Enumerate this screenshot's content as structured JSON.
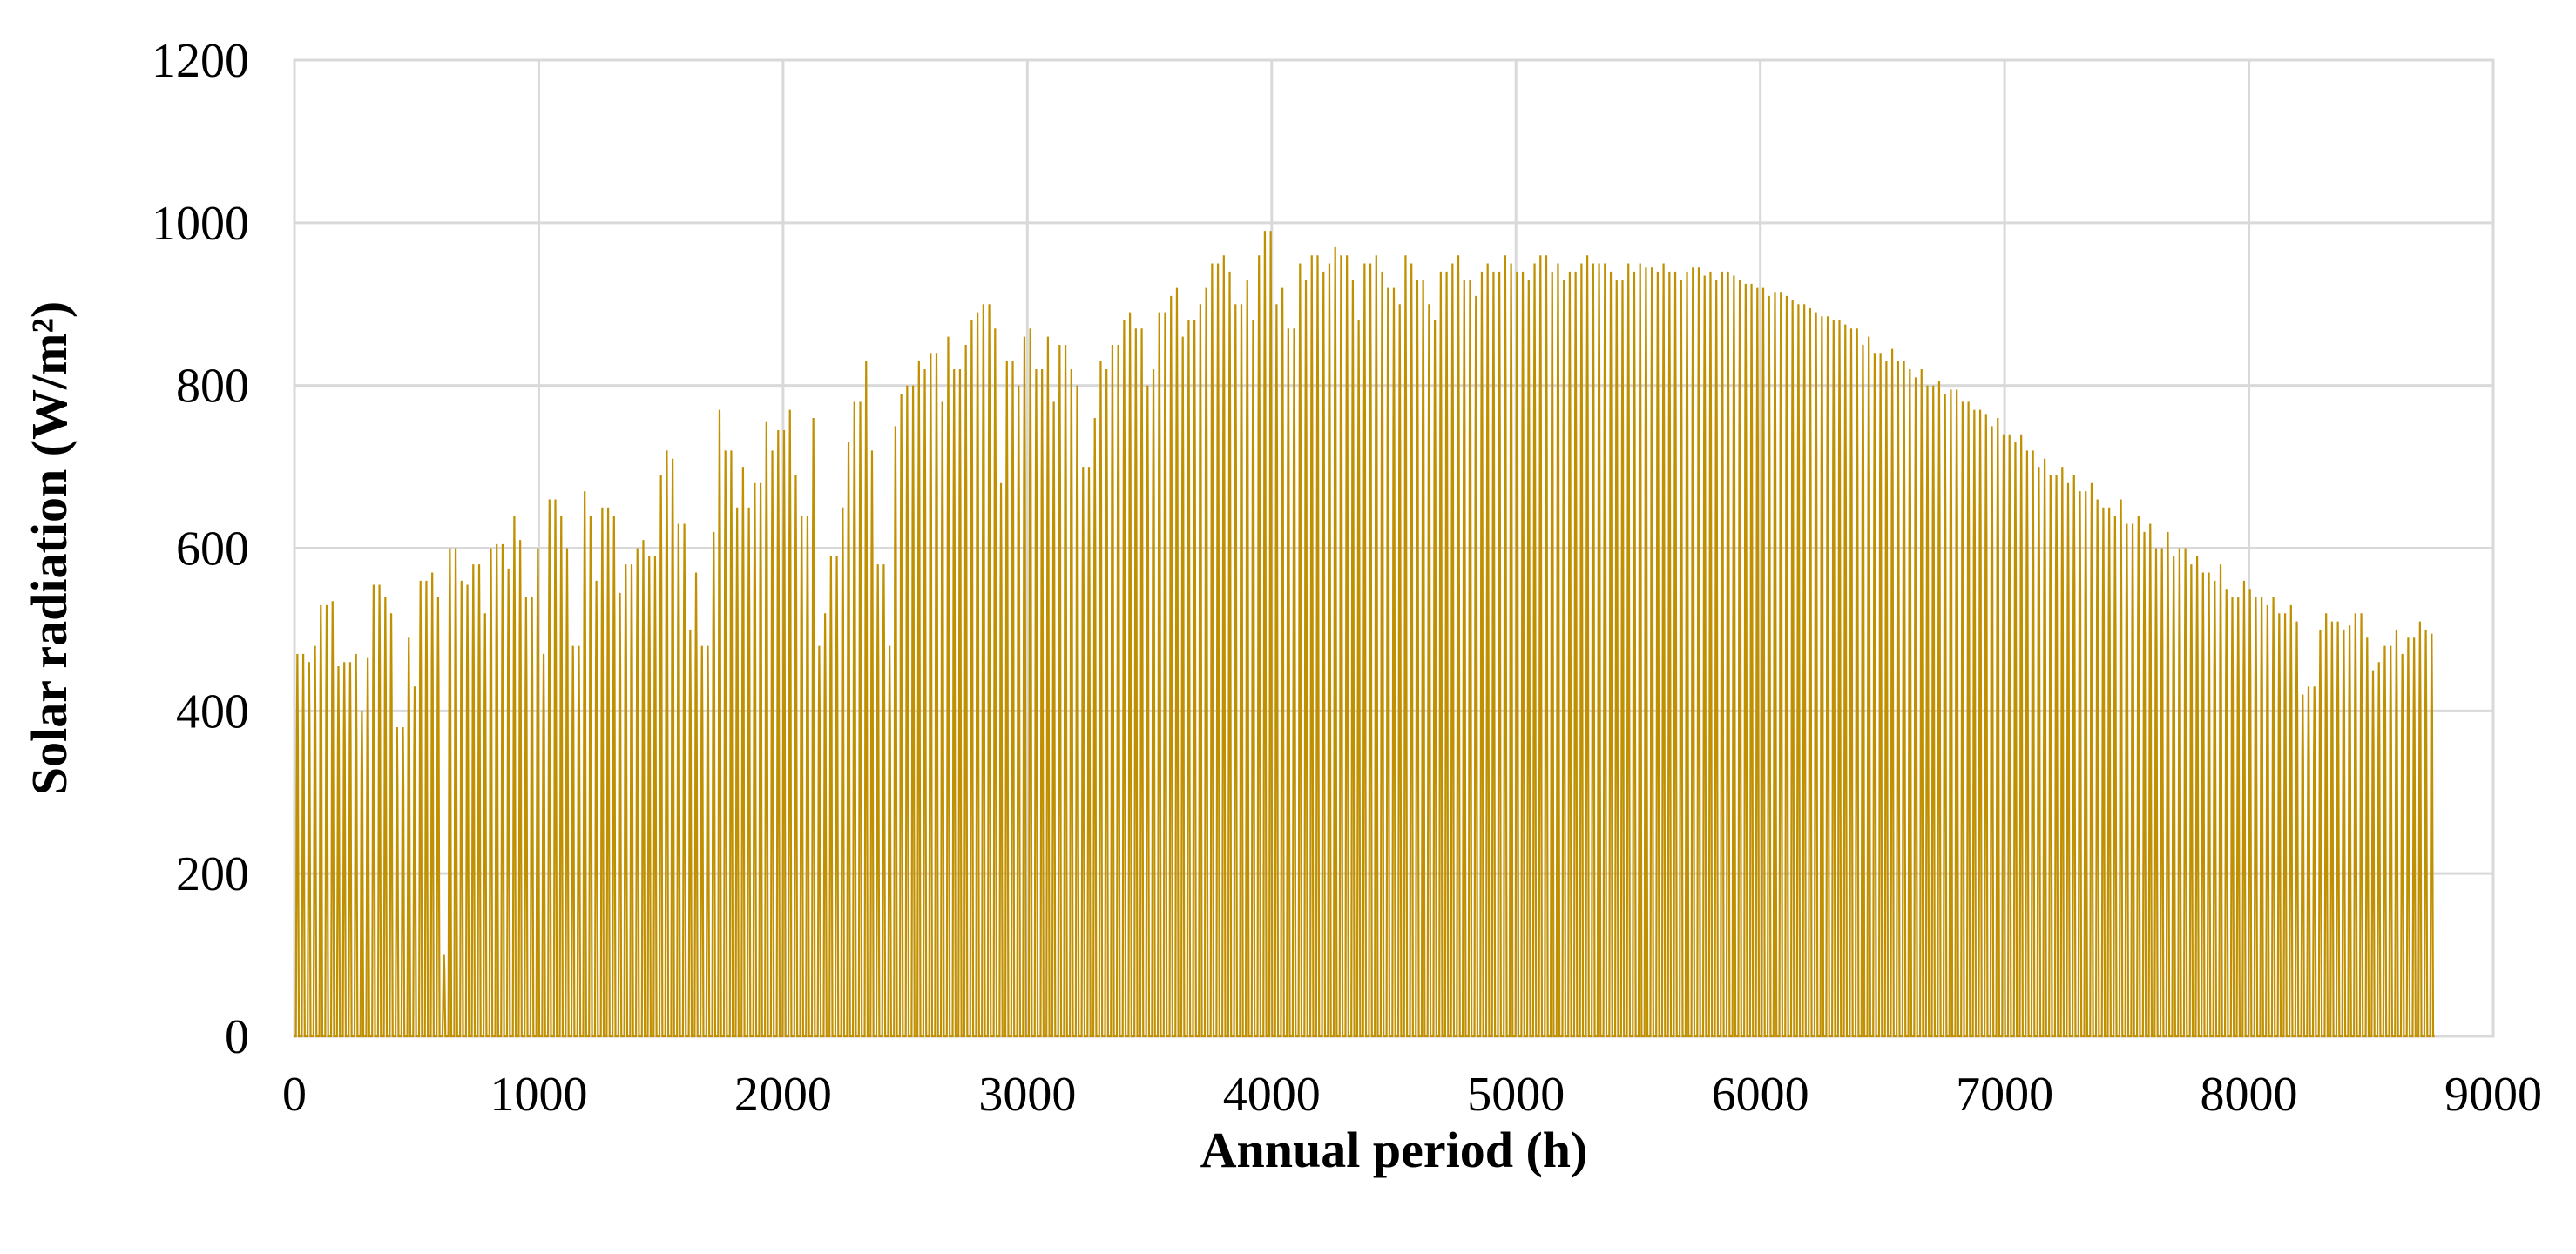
{
  "chart_data": {
    "type": "line",
    "title": "",
    "xlabel": "Annual period (h)",
    "ylabel": "Solar radiation (W/m²)",
    "xlim": [
      0,
      9000
    ],
    "ylim": [
      0,
      1200
    ],
    "x_ticks": [
      0,
      1000,
      2000,
      3000,
      4000,
      5000,
      6000,
      7000,
      8000,
      9000
    ],
    "y_ticks": [
      0,
      200,
      400,
      600,
      800,
      1000,
      1200
    ],
    "x_tick_labels": [
      "0",
      "1000",
      "2000",
      "3000",
      "4000",
      "5000",
      "6000",
      "7000",
      "8000",
      "9000"
    ],
    "y_tick_labels": [
      "0",
      "200",
      "400",
      "600",
      "800",
      "1000",
      "1200"
    ],
    "grid": true,
    "legend": "none",
    "series": [
      {
        "name": "Solar radiation",
        "color": "#c09000",
        "x_start": 0,
        "x_end": 8760,
        "step_hours": 24,
        "description_of_values": "daily peak irradiance per 24-hour cycle (W/m²), zero at night",
        "daily_peaks": [
          470,
          460,
          480,
          530,
          535,
          455,
          460,
          470,
          400,
          465,
          555,
          540,
          520,
          380,
          490,
          430,
          560,
          570,
          540,
          100,
          600,
          560,
          555,
          580,
          520,
          600,
          605,
          575,
          640,
          610,
          540,
          600,
          470,
          660,
          640,
          600,
          480,
          670,
          640,
          560,
          650,
          640,
          545,
          580,
          600,
          610,
          590,
          690,
          720,
          710,
          630,
          500,
          570,
          480,
          620,
          770,
          720,
          650,
          700,
          650,
          680,
          755,
          720,
          745,
          770,
          690,
          640,
          760,
          480,
          520,
          590,
          650,
          730,
          780,
          830,
          720,
          580,
          480,
          750,
          790,
          800,
          830,
          820,
          840,
          780,
          860,
          820,
          850,
          880,
          890,
          900,
          870,
          680,
          830,
          800,
          860,
          870,
          820,
          860,
          780,
          850,
          820,
          800,
          700,
          760,
          830,
          820,
          850,
          880,
          890,
          870,
          800,
          820,
          890,
          910,
          920,
          860,
          880,
          900,
          920,
          950,
          960,
          940,
          900,
          930,
          880,
          960,
          990,
          900,
          920,
          870,
          950,
          930,
          960,
          940,
          950,
          970,
          960,
          930,
          880,
          950,
          960,
          940,
          920,
          900,
          960,
          950,
          930,
          900,
          880,
          940,
          950,
          960,
          930,
          910,
          940,
          950,
          940,
          960,
          950,
          940,
          930,
          950,
          960,
          940,
          950,
          930,
          940,
          950,
          960,
          950,
          950,
          940,
          930,
          950,
          940,
          950,
          945,
          940,
          950,
          940,
          930,
          940,
          945,
          935,
          940,
          930,
          940,
          935,
          930,
          925,
          920,
          920,
          910,
          915,
          910,
          905,
          900,
          895,
          890,
          885,
          880,
          880,
          875,
          870,
          850,
          860,
          840,
          830,
          845,
          830,
          820,
          810,
          820,
          800,
          805,
          790,
          795,
          780,
          780,
          770,
          765,
          750,
          760,
          740,
          730,
          740,
          720,
          700,
          710,
          690,
          700,
          680,
          690,
          670,
          680,
          660,
          650,
          640,
          660,
          630,
          640,
          620,
          630,
          600,
          620,
          590,
          600,
          580,
          590,
          570,
          560,
          580,
          550,
          540,
          560,
          550,
          540,
          530,
          540,
          520,
          530,
          510,
          420,
          430,
          500,
          520,
          510,
          500,
          505,
          520,
          490,
          450,
          460,
          480,
          500,
          470,
          490,
          510,
          500,
          495
        ]
      }
    ]
  }
}
